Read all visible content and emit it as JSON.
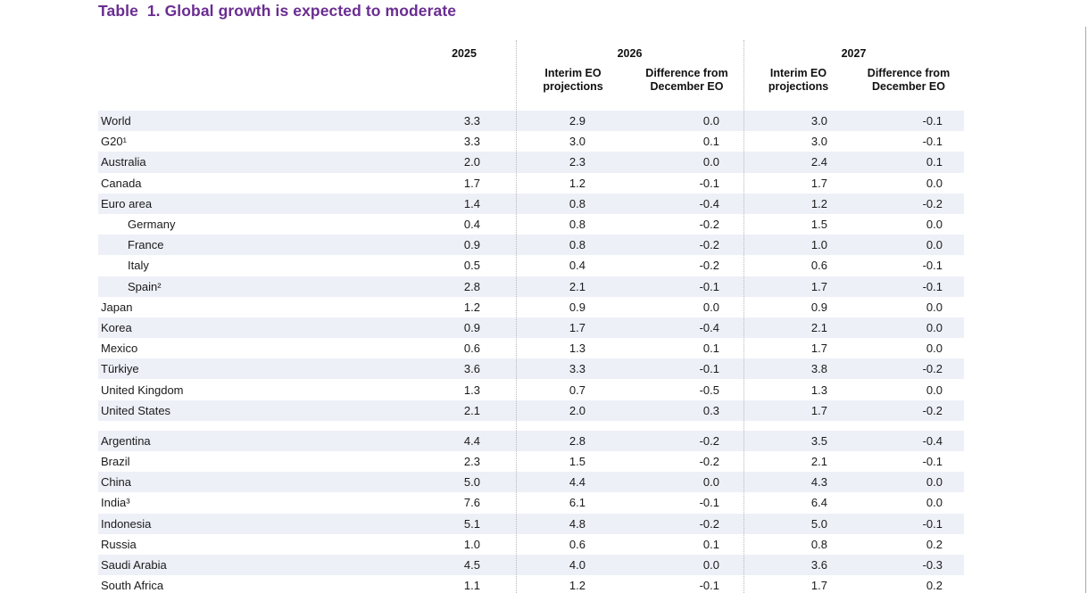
{
  "page": {
    "title": "Table  1. Global growth is expected to moderate"
  },
  "colors": {
    "title": "#6a2d91",
    "row_shade": "#eef0f8",
    "divider": "#b8b8b8"
  },
  "header": {
    "year_2025": "2025",
    "year_2026": "2026",
    "year_2027": "2027",
    "interim_line1": "Interim EO",
    "interim_line2": "projections",
    "diff_line1": "Difference from",
    "diff_line2": "December EO"
  },
  "rows": [
    {
      "name": "World",
      "indent": false,
      "section": 1,
      "v2025": "3.3",
      "v2026": "2.9",
      "d2026": "0.0",
      "v2027": "3.0",
      "d2027": "-0.1"
    },
    {
      "name": "G20¹",
      "indent": false,
      "section": 1,
      "v2025": "3.3",
      "v2026": "3.0",
      "d2026": "0.1",
      "v2027": "3.0",
      "d2027": "-0.1"
    },
    {
      "name": "Australia",
      "indent": false,
      "section": 1,
      "v2025": "2.0",
      "v2026": "2.3",
      "d2026": "0.0",
      "v2027": "2.4",
      "d2027": "0.1"
    },
    {
      "name": "Canada",
      "indent": false,
      "section": 1,
      "v2025": "1.7",
      "v2026": "1.2",
      "d2026": "-0.1",
      "v2027": "1.7",
      "d2027": "0.0"
    },
    {
      "name": "Euro area",
      "indent": false,
      "section": 1,
      "v2025": "1.4",
      "v2026": "0.8",
      "d2026": "-0.4",
      "v2027": "1.2",
      "d2027": "-0.2"
    },
    {
      "name": "Germany",
      "indent": true,
      "section": 1,
      "v2025": "0.4",
      "v2026": "0.8",
      "d2026": "-0.2",
      "v2027": "1.5",
      "d2027": "0.0"
    },
    {
      "name": "France",
      "indent": true,
      "section": 1,
      "v2025": "0.9",
      "v2026": "0.8",
      "d2026": "-0.2",
      "v2027": "1.0",
      "d2027": "0.0"
    },
    {
      "name": "Italy",
      "indent": true,
      "section": 1,
      "v2025": "0.5",
      "v2026": "0.4",
      "d2026": "-0.2",
      "v2027": "0.6",
      "d2027": "-0.1"
    },
    {
      "name": "Spain²",
      "indent": true,
      "section": 1,
      "v2025": "2.8",
      "v2026": "2.1",
      "d2026": "-0.1",
      "v2027": "1.7",
      "d2027": "-0.1"
    },
    {
      "name": "Japan",
      "indent": false,
      "section": 1,
      "v2025": "1.2",
      "v2026": "0.9",
      "d2026": "0.0",
      "v2027": "0.9",
      "d2027": "0.0"
    },
    {
      "name": "Korea",
      "indent": false,
      "section": 1,
      "v2025": "0.9",
      "v2026": "1.7",
      "d2026": "-0.4",
      "v2027": "2.1",
      "d2027": "0.0"
    },
    {
      "name": "Mexico",
      "indent": false,
      "section": 1,
      "v2025": "0.6",
      "v2026": "1.3",
      "d2026": "0.1",
      "v2027": "1.7",
      "d2027": "0.0"
    },
    {
      "name": "Türkiye",
      "indent": false,
      "section": 1,
      "v2025": "3.6",
      "v2026": "3.3",
      "d2026": "-0.1",
      "v2027": "3.8",
      "d2027": "-0.2"
    },
    {
      "name": "United Kingdom",
      "indent": false,
      "section": 1,
      "v2025": "1.3",
      "v2026": "0.7",
      "d2026": "-0.5",
      "v2027": "1.3",
      "d2027": "0.0"
    },
    {
      "name": "United States",
      "indent": false,
      "section": 1,
      "v2025": "2.1",
      "v2026": "2.0",
      "d2026": "0.3",
      "v2027": "1.7",
      "d2027": "-0.2"
    },
    {
      "name": "Argentina",
      "indent": false,
      "section": 2,
      "v2025": "4.4",
      "v2026": "2.8",
      "d2026": "-0.2",
      "v2027": "3.5",
      "d2027": "-0.4"
    },
    {
      "name": "Brazil",
      "indent": false,
      "section": 2,
      "v2025": "2.3",
      "v2026": "1.5",
      "d2026": "-0.2",
      "v2027": "2.1",
      "d2027": "-0.1"
    },
    {
      "name": "China",
      "indent": false,
      "section": 2,
      "v2025": "5.0",
      "v2026": "4.4",
      "d2026": "0.0",
      "v2027": "4.3",
      "d2027": "0.0"
    },
    {
      "name": "India³",
      "indent": false,
      "section": 2,
      "v2025": "7.6",
      "v2026": "6.1",
      "d2026": "-0.1",
      "v2027": "6.4",
      "d2027": "0.0"
    },
    {
      "name": "Indonesia",
      "indent": false,
      "section": 2,
      "v2025": "5.1",
      "v2026": "4.8",
      "d2026": "-0.2",
      "v2027": "5.0",
      "d2027": "-0.1"
    },
    {
      "name": "Russia",
      "indent": false,
      "section": 2,
      "v2025": "1.0",
      "v2026": "0.6",
      "d2026": "0.1",
      "v2027": "0.8",
      "d2027": "0.2"
    },
    {
      "name": "Saudi Arabia",
      "indent": false,
      "section": 2,
      "v2025": "4.5",
      "v2026": "4.0",
      "d2026": "0.0",
      "v2027": "3.6",
      "d2027": "-0.3"
    },
    {
      "name": "South Africa",
      "indent": false,
      "section": 2,
      "v2025": "1.1",
      "v2026": "1.2",
      "d2026": "-0.1",
      "v2027": "1.7",
      "d2027": "0.2"
    }
  ]
}
